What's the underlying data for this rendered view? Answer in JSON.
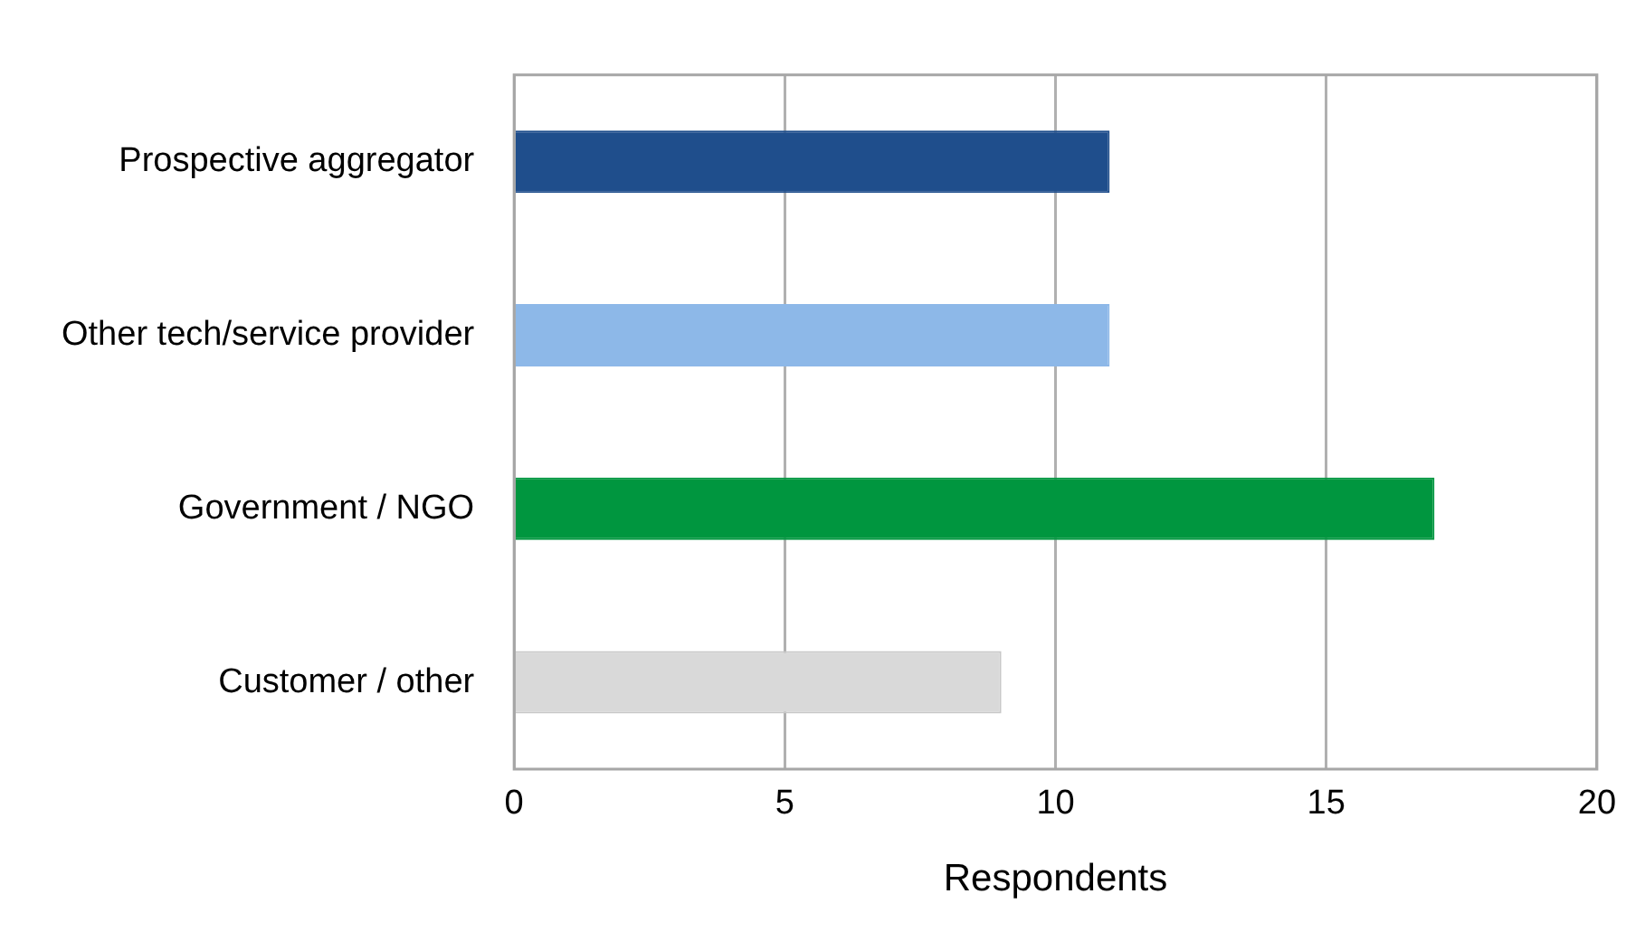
{
  "chart_data": {
    "type": "bar",
    "orientation": "horizontal",
    "xlabel": "Respondents",
    "categories": [
      "Prospective aggregator",
      "Other tech/service provider",
      "Government / NGO",
      "Customer / other"
    ],
    "values": [
      11,
      11,
      17,
      9
    ],
    "colors": [
      "#1f4e8c",
      "#8db8e8",
      "#00963f",
      "#d9d9d9"
    ],
    "xlim": [
      0,
      20
    ],
    "xticks": [
      0,
      5,
      10,
      15,
      20
    ],
    "grid": "x",
    "legend": false
  }
}
